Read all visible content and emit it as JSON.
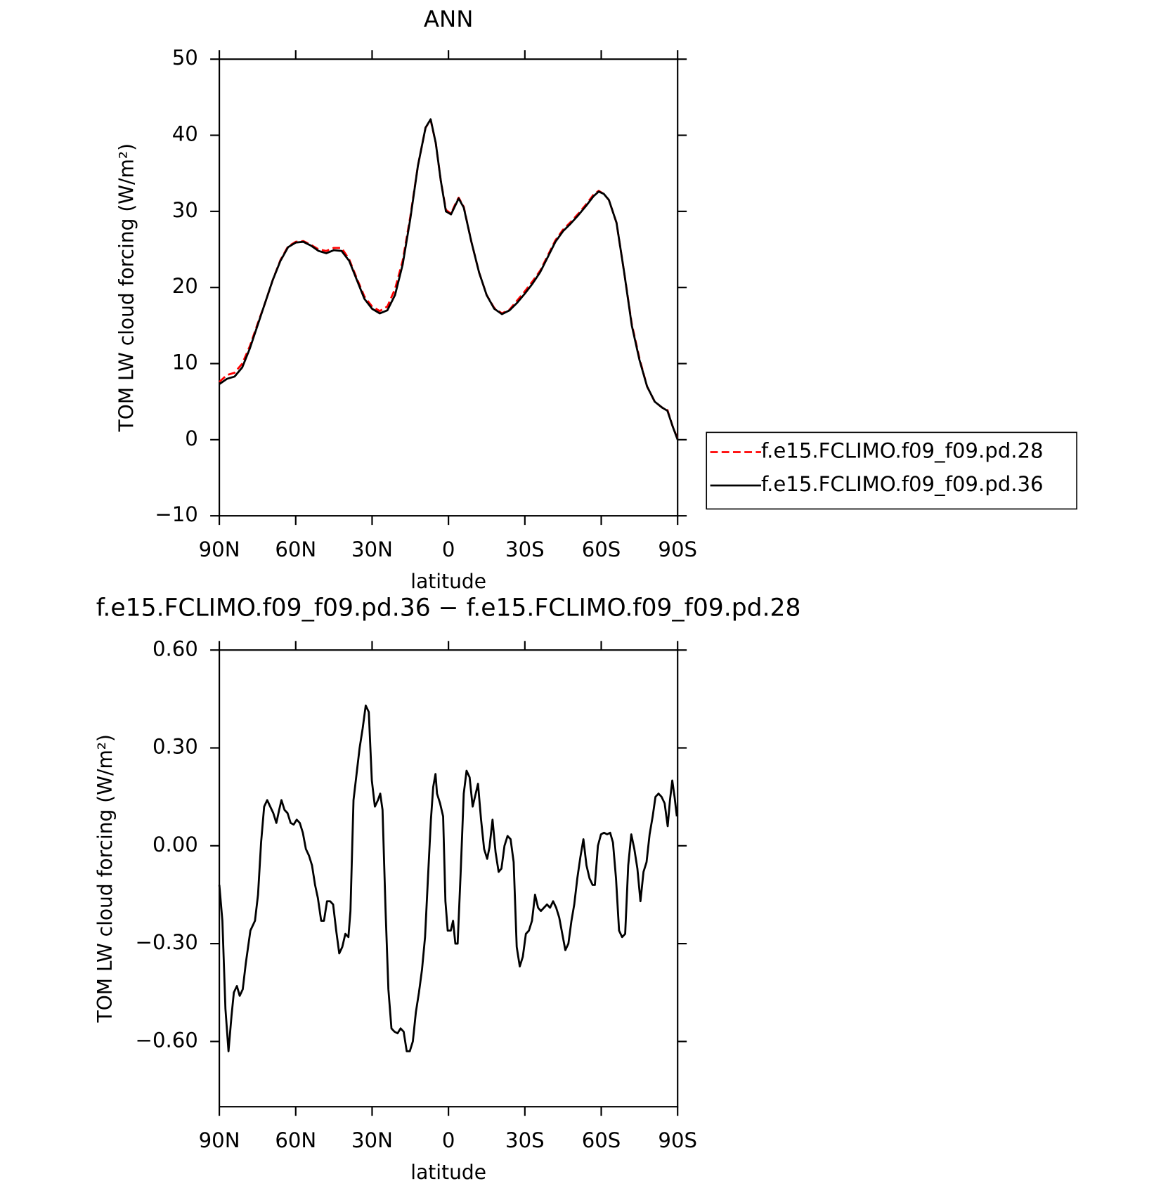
{
  "chart_data": [
    {
      "type": "line",
      "title": "ANN",
      "xlabel": "latitude",
      "ylabel": "TOM LW cloud forcing (W/m²)",
      "xlim": [
        90,
        -90
      ],
      "xticks": [
        {
          "value": 90,
          "label": "90N"
        },
        {
          "value": 60,
          "label": "60N"
        },
        {
          "value": 30,
          "label": "30N"
        },
        0,
        {
          "value": -30,
          "label": "30S"
        },
        {
          "value": -60,
          "label": "60S"
        },
        {
          "value": -90,
          "label": "90S"
        }
      ],
      "ylim": [
        -10,
        50
      ],
      "yticks": [
        {
          "value": -10,
          "label": "−10"
        },
        0,
        10,
        20,
        30,
        40,
        50
      ],
      "x": [
        90,
        87,
        84,
        81,
        78,
        75,
        72,
        69,
        66,
        63,
        60,
        57,
        54,
        51,
        48,
        45,
        42,
        39,
        36,
        33,
        30,
        27,
        24,
        21,
        18,
        15,
        12,
        9,
        7,
        5,
        3,
        1,
        -1,
        -3,
        -4,
        -6,
        -9,
        -12,
        -15,
        -18,
        -21,
        -24,
        -27,
        -30,
        -33,
        -36,
        -39,
        -42,
        -45,
        -48,
        -51,
        -54,
        -57,
        -59,
        -61,
        -63,
        -66,
        -69,
        -72,
        -75,
        -78,
        -81,
        -84,
        -86,
        -88,
        -90
      ],
      "series": [
        {
          "name": "f.e15.FCLIMO.f09_f09.pd.28",
          "color": "#ff0000",
          "line_style": "dashed",
          "values": [
            7.6,
            8.5,
            8.8,
            10,
            12.3,
            15.2,
            18,
            21,
            23.6,
            25.4,
            26.0,
            26.1,
            25.6,
            25.0,
            24.8,
            25.2,
            25.2,
            23.7,
            21.2,
            18.8,
            17.5,
            16.9,
            17.5,
            19.8,
            23.5,
            29.3,
            36,
            41,
            42,
            39,
            34,
            30.2,
            29.7,
            31.2,
            31.8,
            30.6,
            26,
            22,
            19,
            17.3,
            16.6,
            17.1,
            18.3,
            19.5,
            20.8,
            22.2,
            24.2,
            26.2,
            27.6,
            28.6,
            29.7,
            30.9,
            32.2,
            32.7,
            32.3,
            31.5,
            28.5,
            22,
            15.2,
            10.7,
            7,
            5,
            4.2,
            3.9,
            1.8,
            0.1
          ]
        },
        {
          "name": "f.e15.FCLIMO.f09_f09.pd.36",
          "color": "#000000",
          "line_style": "solid",
          "values": [
            7.3,
            8.0,
            8.3,
            9.5,
            12,
            15,
            18,
            21,
            23.5,
            25.3,
            25.9,
            26.0,
            25.5,
            24.8,
            24.5,
            24.9,
            24.8,
            23.5,
            21,
            18.5,
            17.2,
            16.6,
            17,
            19,
            23,
            29,
            36,
            41,
            42.1,
            39,
            34,
            30,
            29.6,
            31,
            31.7,
            30.5,
            26,
            22,
            19,
            17.2,
            16.5,
            17,
            18,
            19.2,
            20.5,
            22,
            24,
            26,
            27.4,
            28.4,
            29.5,
            30.7,
            32,
            32.6,
            32.3,
            31.5,
            28.5,
            22,
            15,
            10.5,
            7,
            5,
            4.2,
            3.8,
            1.8,
            0
          ]
        }
      ]
    },
    {
      "type": "line",
      "title": "f.e15.FCLIMO.f09_f09.pd.36 − f.e15.FCLIMO.f09_f09.pd.28",
      "xlabel": "latitude",
      "ylabel": "TOM LW cloud forcing (W/m²)",
      "xlim": [
        90,
        -90
      ],
      "xticks": [
        {
          "value": 90,
          "label": "90N"
        },
        {
          "value": 60,
          "label": "60N"
        },
        {
          "value": 30,
          "label": "30N"
        },
        0,
        {
          "value": -30,
          "label": "30S"
        },
        {
          "value": -60,
          "label": "60S"
        },
        {
          "value": -90,
          "label": "90S"
        }
      ],
      "ylim": [
        -0.8,
        0.6
      ],
      "yticks": [
        {
          "value": -0.6,
          "label": "−0.60"
        },
        {
          "value": -0.3,
          "label": "−0.30"
        },
        {
          "value": 0,
          "label": "0.00"
        },
        {
          "value": 0.3,
          "label": "0.30"
        },
        {
          "value": 0.6,
          "label": "0.60"
        }
      ],
      "x": [
        90,
        88.8,
        87.6,
        86.4,
        85.2,
        84.3,
        83.1,
        82,
        80.8,
        79.6,
        77.8,
        76,
        74.8,
        73.6,
        72.4,
        71.2,
        70,
        68.8,
        67.6,
        66.5,
        65.6,
        64.4,
        63.2,
        62,
        60.8,
        59.6,
        58.4,
        57.2,
        56,
        54.8,
        53.6,
        52.4,
        51.3,
        50,
        48.9,
        47.7,
        46.5,
        45.3,
        44.1,
        42.9,
        41.7,
        40.5,
        39.3,
        38.5,
        37.3,
        36.1,
        34.9,
        33.7,
        32.5,
        31.3,
        30.1,
        28.9,
        27.7,
        26.8,
        25.9,
        24.7,
        23.6,
        22.4,
        21.2,
        20,
        18.8,
        17.6,
        16.4,
        15.2,
        14,
        12.8,
        11.6,
        10.4,
        9.2,
        8,
        6.9,
        6,
        5.1,
        4.5,
        3.3,
        2.1,
        1.2,
        0.3,
        -0.9,
        -1.8,
        -2.7,
        -3.6,
        -4.8,
        -6,
        -7.1,
        -8.3,
        -9.5,
        -10.7,
        -11.6,
        -12.8,
        -14,
        -15.2,
        -16.1,
        -17.3,
        -18.5,
        -19.7,
        -20.8,
        -22,
        -23.2,
        -24.4,
        -25.6,
        -26.8,
        -28,
        -29.2,
        -30.4,
        -31.6,
        -32.8,
        -34,
        -35.2,
        -36.3,
        -37.5,
        -38.7,
        -39.9,
        -41.1,
        -42.3,
        -43.5,
        -44.7,
        -45.9,
        -47.1,
        -48.3,
        -49.4,
        -50.6,
        -51.8,
        -53,
        -54.2,
        -55.4,
        -56.6,
        -57.5,
        -58.7,
        -59.9,
        -61.1,
        -62.3,
        -63.5,
        -64.6,
        -65.8,
        -67,
        -68.2,
        -69.4,
        -70.6,
        -71.8,
        -73,
        -74.2,
        -75.4,
        -76.6,
        -77.8,
        -79,
        -80.2,
        -81.3,
        -82.5,
        -83.7,
        -84.9,
        -86.1,
        -87,
        -87.9,
        -88.8,
        -89.7
      ],
      "series": [
        {
          "color": "#000000",
          "line_style": "solid",
          "values": [
            -0.12,
            -0.23,
            -0.5,
            -0.63,
            -0.52,
            -0.45,
            -0.43,
            -0.46,
            -0.44,
            -0.36,
            -0.26,
            -0.23,
            -0.15,
            0.01,
            0.12,
            0.14,
            0.12,
            0.1,
            0.07,
            0.11,
            0.14,
            0.11,
            0.1,
            0.07,
            0.065,
            0.08,
            0.07,
            0.04,
            -0.01,
            -0.03,
            -0.06,
            -0.12,
            -0.16,
            -0.23,
            -0.23,
            -0.17,
            -0.17,
            -0.18,
            -0.26,
            -0.33,
            -0.31,
            -0.27,
            -0.28,
            -0.2,
            0.14,
            0.22,
            0.3,
            0.36,
            0.43,
            0.41,
            0.2,
            0.12,
            0.14,
            0.16,
            0.11,
            -0.2,
            -0.44,
            -0.56,
            -0.57,
            -0.575,
            -0.56,
            -0.57,
            -0.63,
            -0.63,
            -0.6,
            -0.51,
            -0.45,
            -0.38,
            -0.28,
            -0.09,
            0.08,
            0.18,
            0.22,
            0.16,
            0.13,
            0.09,
            -0.17,
            -0.26,
            -0.26,
            -0.23,
            -0.3,
            -0.3,
            -0.08,
            0.16,
            0.23,
            0.21,
            0.12,
            0.16,
            0.19,
            0.08,
            -0.01,
            -0.04,
            -0.005,
            0.08,
            -0.02,
            -0.08,
            -0.07,
            0,
            0.03,
            0.02,
            -0.05,
            -0.31,
            -0.37,
            -0.34,
            -0.27,
            -0.26,
            -0.23,
            -0.15,
            -0.19,
            -0.2,
            -0.19,
            -0.18,
            -0.19,
            -0.17,
            -0.19,
            -0.22,
            -0.27,
            -0.32,
            -0.3,
            -0.23,
            -0.18,
            -0.1,
            -0.035,
            0.02,
            -0.06,
            -0.1,
            -0.12,
            -0.12,
            0,
            0.035,
            0.04,
            0.035,
            0.04,
            0.01,
            -0.1,
            -0.26,
            -0.28,
            -0.27,
            -0.06,
            0.035,
            -0.01,
            -0.07,
            -0.17,
            -0.08,
            -0.05,
            0.035,
            0.09,
            0.15,
            0.16,
            0.15,
            0.13,
            0.06,
            0.14,
            0.2,
            0.15,
            0.09
          ]
        }
      ]
    }
  ]
}
